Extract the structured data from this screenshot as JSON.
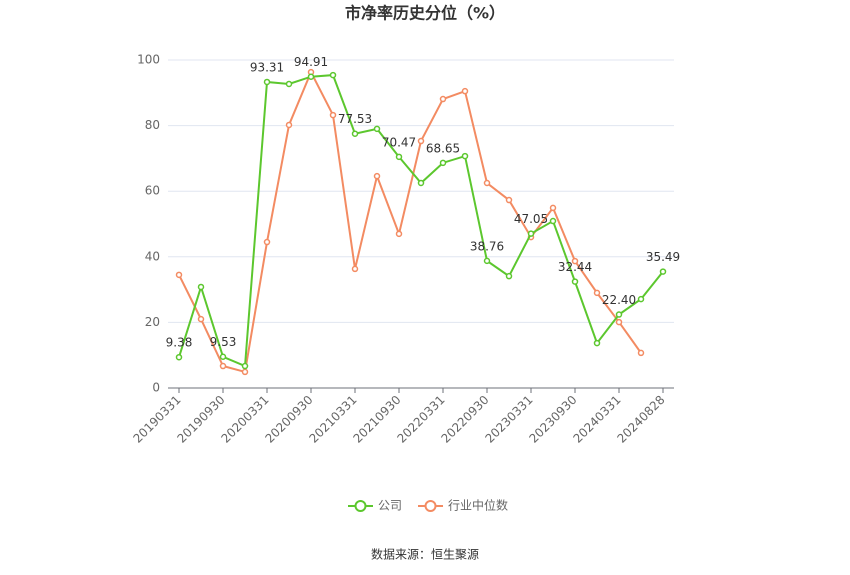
{
  "chart_data": {
    "type": "line",
    "title": "市净率历史分位（%）",
    "categories": [
      "20190331",
      null,
      "20190930",
      null,
      "20200331",
      null,
      "20200930",
      null,
      "20210331",
      null,
      "20210930",
      null,
      "20220331",
      null,
      "20220930",
      null,
      "20230331",
      null,
      "20230930",
      null,
      "20240331",
      null,
      "20240828"
    ],
    "series": [
      {
        "name": "公司",
        "color": "#5cc72e",
        "values": [
          9.38,
          30.8,
          9.53,
          6.7,
          93.31,
          92.7,
          94.91,
          95.4,
          77.53,
          79.0,
          70.47,
          62.5,
          68.65,
          70.7,
          38.76,
          34.1,
          47.05,
          50.9,
          32.44,
          13.7,
          22.4,
          27.1,
          35.49
        ],
        "value_labels": [
          "9.38",
          null,
          "9.53",
          null,
          "93.31",
          null,
          "94.91",
          null,
          "77.53",
          null,
          "70.47",
          null,
          "68.65",
          null,
          "38.76",
          null,
          "47.05",
          null,
          "32.44",
          null,
          "22.40",
          null,
          "35.49"
        ]
      },
      {
        "name": "行业中位数",
        "color": "#f38b62",
        "values": [
          34.5,
          21.0,
          6.7,
          4.9,
          44.5,
          80.2,
          96.3,
          83.2,
          36.3,
          64.6,
          47.0,
          75.3,
          88.1,
          90.5,
          62.5,
          57.3,
          46.0,
          54.9,
          38.7,
          29.0,
          20.1,
          10.7,
          null
        ]
      }
    ],
    "ylim": [
      0,
      100
    ],
    "yticks": [
      0,
      20,
      40,
      60,
      80,
      100
    ],
    "grid": true,
    "source": "数据来源：恒生聚源"
  }
}
